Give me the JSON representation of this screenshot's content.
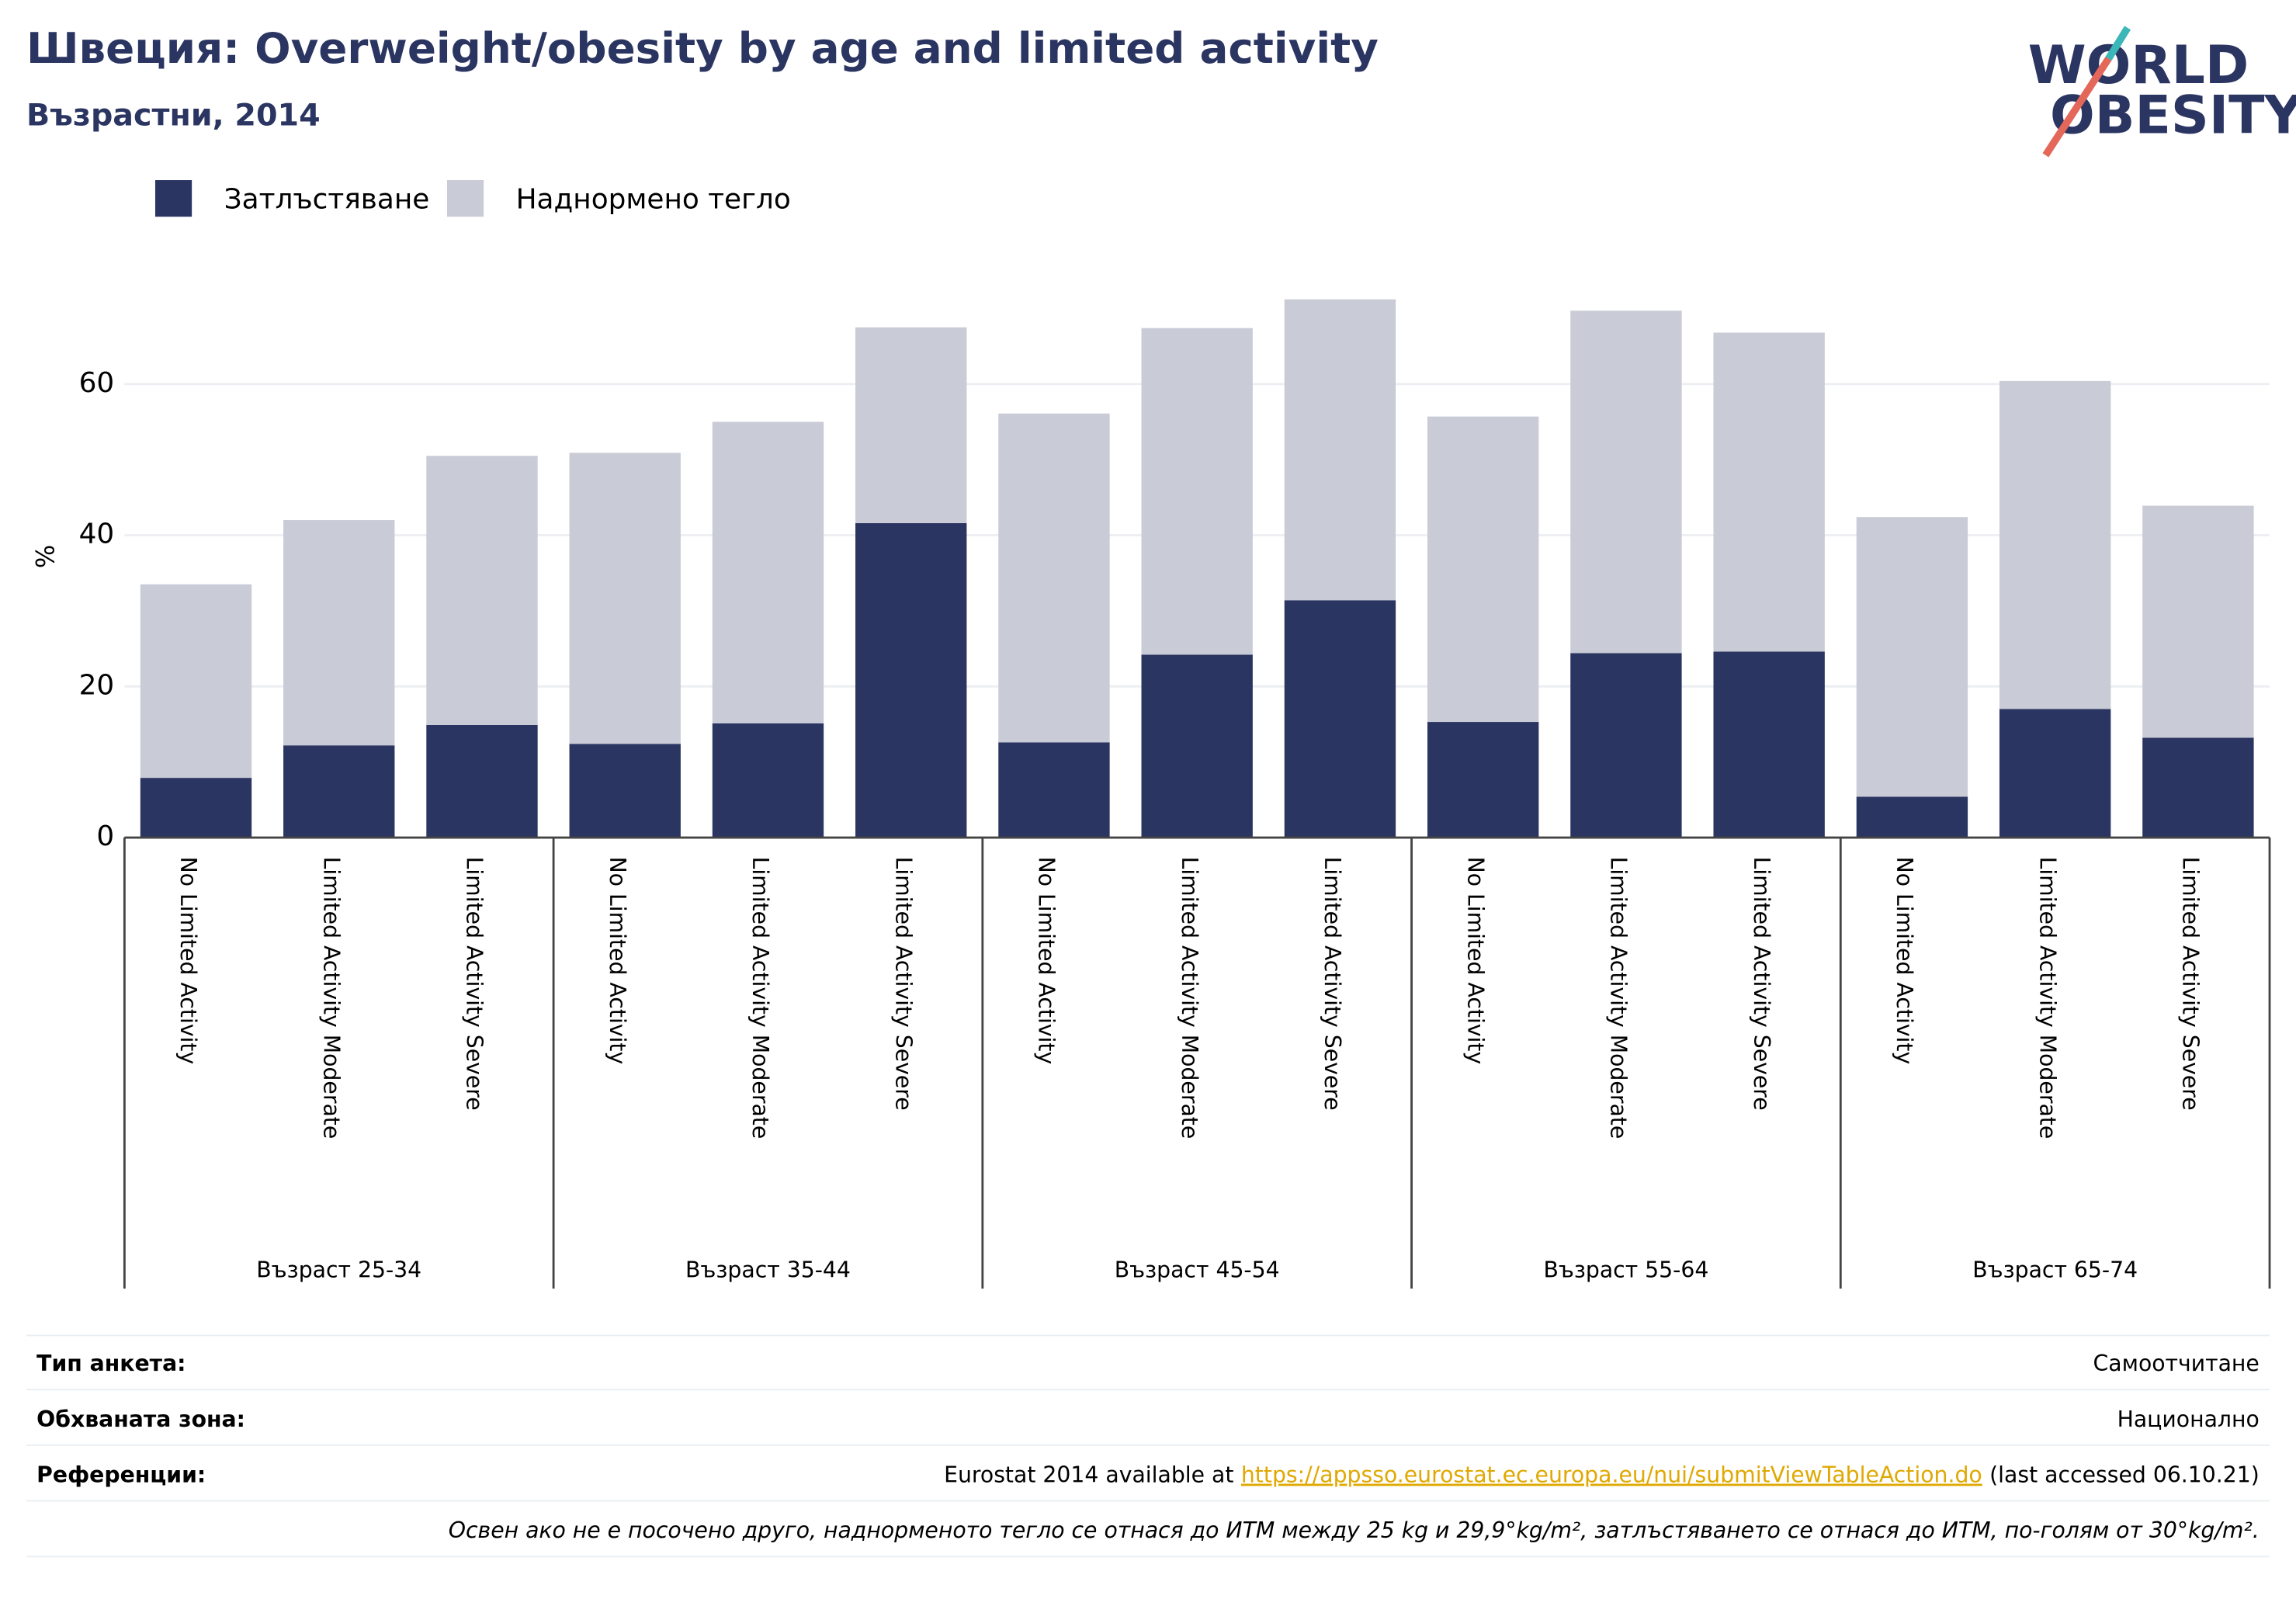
{
  "chart_data": {
    "type": "stacked_bar",
    "title": "Швеция: Overweight/obesity by age and limited activity",
    "subtitle": "Възрастни, 2014",
    "y_label": "%",
    "categories": [
      "No Limited Activity",
      "Limited Activity Moderate",
      "Limited Activity Severe",
      "No Limited Activity",
      "Limited Activity Moderate",
      "Limited Activity Severe",
      "No Limited Activity",
      "Limited Activity Moderate",
      "Limited Activity Severe",
      "No Limited Activity",
      "Limited Activity Moderate",
      "Limited Activity Severe",
      "No Limited Activity",
      "Limited Activity Moderate",
      "Limited Activity Severe"
    ],
    "groups": [
      "Възраст 25-34",
      "Възраст 35-44",
      "Възраст 45-54",
      "Възраст 55-64",
      "Възраст 65-74"
    ],
    "series": [
      {
        "name": "Затлъстяване",
        "color": "#2b3561",
        "values": [
          7.9,
          12.2,
          14.9,
          12.4,
          15.1,
          41.6,
          12.6,
          24.2,
          31.4,
          15.3,
          24.4,
          24.6,
          5.4,
          17.0,
          13.2
        ]
      },
      {
        "name": "Наднормено тегло",
        "color": "#c9cbd6",
        "values": [
          25.6,
          29.8,
          35.6,
          38.5,
          39.9,
          25.9,
          43.5,
          43.2,
          39.8,
          40.4,
          45.3,
          42.2,
          37.0,
          43.4,
          30.7
        ]
      }
    ],
    "ylim": [
      0,
      74
    ],
    "yticks": [
      0,
      20,
      40,
      60
    ],
    "grid": true
  },
  "logo": {
    "line1": "WORLD",
    "line2": "OBESITY"
  },
  "footer": {
    "survey": {
      "label": "Тип анкета:",
      "value": "Самоотчитане"
    },
    "coverage": {
      "label": "Обхваната зона:",
      "value": "Национално"
    },
    "references": {
      "label": "Референции:",
      "prefix": "Eurostat 2014 available at",
      "link": "https://appsso.eurostat.ec.europa.eu/nui/submitViewTableAction.do",
      "suffix": "(last accessed 06.10.21)"
    },
    "note": "Освен ако не е посочено друго, наднорменото тегло се отнася до ИТМ между 25 kg и 29,9°kg/m², затлъстяването се отнася до ИТМ, по-голям от 30°kg/m²."
  }
}
